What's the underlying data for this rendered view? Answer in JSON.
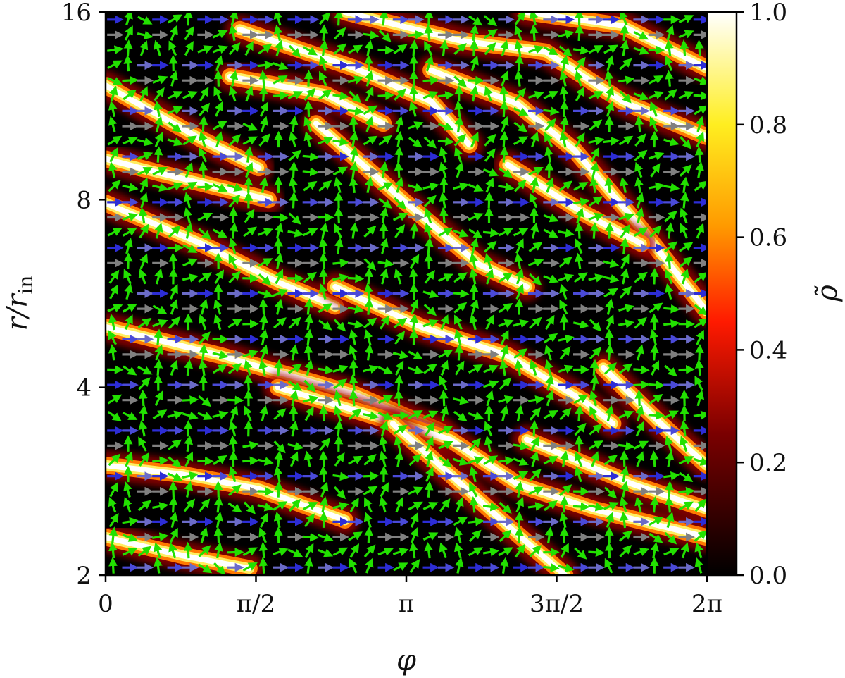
{
  "chart_data": {
    "type": "heatmap",
    "title": "",
    "xlabel": "φ",
    "ylabel": "r/r",
    "ylabel_sub": "in",
    "xlim": [
      0,
      6.2832
    ],
    "ylim": [
      2,
      16
    ],
    "y_scale": "log",
    "x_ticks": [
      {
        "value": 0,
        "label": "0"
      },
      {
        "value": 1.5708,
        "label": "π/2"
      },
      {
        "value": 3.1416,
        "label": "π"
      },
      {
        "value": 4.7124,
        "label": "3π/2"
      },
      {
        "value": 6.2832,
        "label": "2π"
      }
    ],
    "y_ticks": [
      {
        "value": 2,
        "label": "2"
      },
      {
        "value": 4,
        "label": "4"
      },
      {
        "value": 8,
        "label": "8"
      },
      {
        "value": 16,
        "label": "16"
      }
    ],
    "colorbar": {
      "label": "ρ̃",
      "range": [
        0.0,
        1.0
      ],
      "colormap": "afmhot",
      "ticks": [
        {
          "value": 0.0,
          "label": "0.0"
        },
        {
          "value": 0.2,
          "label": "0.2"
        },
        {
          "value": 0.4,
          "label": "0.4"
        },
        {
          "value": 0.6,
          "label": "0.6"
        },
        {
          "value": 0.8,
          "label": "0.8"
        },
        {
          "value": 1.0,
          "label": "1.0"
        }
      ]
    },
    "filaments": [
      {
        "points": [
          [
            0.0,
            12.2
          ],
          [
            1.0,
            10.0
          ],
          [
            1.6,
            9.0
          ]
        ]
      },
      {
        "points": [
          [
            0.0,
            9.3
          ],
          [
            0.6,
            8.8
          ],
          [
            1.7,
            8.0
          ]
        ]
      },
      {
        "points": [
          [
            0.0,
            7.9
          ],
          [
            1.0,
            6.8
          ],
          [
            1.8,
            5.9
          ],
          [
            2.4,
            5.4
          ]
        ]
      },
      {
        "points": [
          [
            0.0,
            5.0
          ],
          [
            1.2,
            4.5
          ],
          [
            2.6,
            3.9
          ],
          [
            3.5,
            3.4
          ]
        ]
      },
      {
        "points": [
          [
            0.0,
            3.0
          ],
          [
            0.8,
            2.9
          ],
          [
            1.6,
            2.75
          ],
          [
            2.5,
            2.45
          ]
        ]
      },
      {
        "points": [
          [
            0.0,
            2.3
          ],
          [
            0.8,
            2.15
          ],
          [
            1.5,
            2.05
          ]
        ]
      },
      {
        "points": [
          [
            1.4,
            15.0
          ],
          [
            2.6,
            13.0
          ],
          [
            3.4,
            11.5
          ],
          [
            3.8,
            9.8
          ]
        ]
      },
      {
        "points": [
          [
            1.3,
            12.6
          ],
          [
            2.3,
            11.8
          ],
          [
            2.9,
            10.6
          ]
        ]
      },
      {
        "points": [
          [
            2.2,
            10.6
          ],
          [
            3.1,
            8.0
          ],
          [
            3.9,
            6.3
          ],
          [
            4.4,
            5.8
          ]
        ]
      },
      {
        "points": [
          [
            2.4,
            5.8
          ],
          [
            3.3,
            5.0
          ],
          [
            4.2,
            4.5
          ],
          [
            5.0,
            3.8
          ],
          [
            5.3,
            3.5
          ]
        ]
      },
      {
        "points": [
          [
            1.8,
            4.0
          ],
          [
            2.8,
            3.6
          ],
          [
            3.6,
            3.3
          ],
          [
            4.3,
            2.8
          ],
          [
            5.1,
            2.55
          ],
          [
            6.28,
            2.3
          ]
        ]
      },
      {
        "points": [
          [
            2.5,
            16.0
          ],
          [
            3.7,
            14.4
          ],
          [
            4.6,
            13.8
          ],
          [
            5.4,
            11.5
          ],
          [
            6.28,
            10.1
          ]
        ]
      },
      {
        "points": [
          [
            3.4,
            12.9
          ],
          [
            4.3,
            11.4
          ],
          [
            4.9,
            9.6
          ],
          [
            5.5,
            7.5
          ],
          [
            6.28,
            5.3
          ]
        ]
      },
      {
        "points": [
          [
            4.4,
            16.0
          ],
          [
            5.4,
            15.2
          ],
          [
            6.28,
            13.0
          ]
        ]
      },
      {
        "points": [
          [
            4.2,
            9.1
          ],
          [
            5.0,
            7.6
          ],
          [
            5.6,
            6.8
          ]
        ]
      },
      {
        "points": [
          [
            3.0,
            3.5
          ],
          [
            3.6,
            2.9
          ],
          [
            4.2,
            2.4
          ],
          [
            4.8,
            2.0
          ]
        ]
      },
      {
        "points": [
          [
            5.2,
            4.3
          ],
          [
            5.8,
            3.5
          ],
          [
            6.28,
            3.0
          ]
        ]
      },
      {
        "points": [
          [
            4.4,
            3.3
          ],
          [
            5.5,
            2.8
          ],
          [
            6.28,
            2.55
          ]
        ]
      }
    ]
  }
}
